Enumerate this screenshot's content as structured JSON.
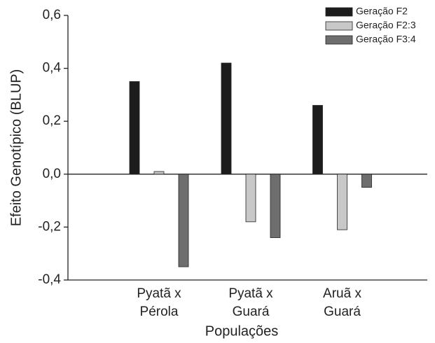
{
  "chart_data": {
    "type": "bar",
    "xlabel": "Populações",
    "ylabel": "Efeito Genotípico (BLUP)",
    "categories": [
      [
        "Pyatã x",
        "Pérola"
      ],
      [
        "Pyatã x",
        "Guará"
      ],
      [
        "Aruã x",
        "Guará"
      ]
    ],
    "series": [
      {
        "name": "Geração F2",
        "color": "#1c1c1c",
        "values": [
          0.35,
          0.42,
          0.26
        ]
      },
      {
        "name": "Geração F2:3",
        "color": "#c8c8c8",
        "values": [
          0.01,
          -0.18,
          -0.21
        ]
      },
      {
        "name": "Geração F3:4",
        "color": "#6e6e6e",
        "values": [
          -0.35,
          -0.24,
          -0.05
        ]
      }
    ],
    "ylim": [
      -0.4,
      0.6
    ],
    "yticks": [
      {
        "value": -0.4,
        "label": "-0,4"
      },
      {
        "value": -0.2,
        "label": "-0,2"
      },
      {
        "value": 0,
        "label": "0,0"
      },
      {
        "value": 0.2,
        "label": "0,2"
      },
      {
        "value": 0.4,
        "label": "0,4"
      },
      {
        "value": 0.6,
        "label": "0,6"
      }
    ],
    "legend": "upper right"
  }
}
